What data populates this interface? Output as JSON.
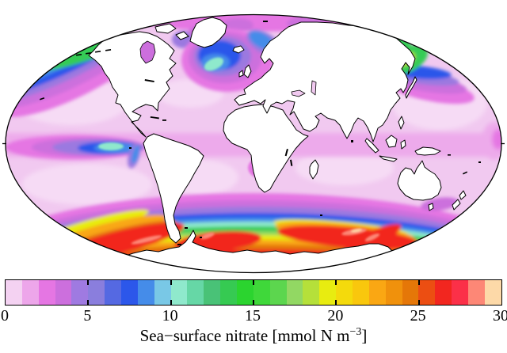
{
  "figure": {
    "kind": "global ocean map with colorbar legend",
    "background": "#ffffff"
  },
  "colorbar": {
    "label_prefix": "Sea−surface nitrate [mmol N m",
    "label_exponent": "−3",
    "label_suffix": "]",
    "ticks": [
      "0",
      "5",
      "10",
      "15",
      "20",
      "25",
      "30"
    ],
    "range": [
      0,
      30
    ],
    "n_cells": 30,
    "cell_colors": [
      "#f4d2f2",
      "#eda6ea",
      "#e576e3",
      "#cc6fdd",
      "#9f7ae1",
      "#8a7edd",
      "#5569e2",
      "#2c57ea",
      "#458ce9",
      "#79c8e6",
      "#8fe9cc",
      "#66d7a6",
      "#49c277",
      "#36ca52",
      "#2bd42f",
      "#3fd83a",
      "#5cd64e",
      "#92d863",
      "#b5e03a",
      "#e8ec10",
      "#f4da0c",
      "#f9c70d",
      "#faa713",
      "#f0910c",
      "#e57708",
      "#ec4e12",
      "#f2261f",
      "#fb3048",
      "#fd8776",
      "#fdd9a8"
    ],
    "border_color": "#000000"
  },
  "palette": {
    "pink_base": "#f1c9f0",
    "pink_light": "#f6dbf5",
    "pink_mid": "#edaaeb",
    "magenta": "#e576e3",
    "orchid": "#cc6fdd",
    "purple": "#9b79e0",
    "blue": "#2c57ea",
    "blue_light": "#458ce9",
    "sky": "#79c8e6",
    "cyan": "#8fe9cc",
    "green": "#35cc55",
    "green_yellow": "#92d863",
    "yellow_green": "#b5e03a",
    "yellow": "#e8ec10",
    "orange": "#f9a713",
    "orange_dark": "#e57708",
    "red": "#f2261f",
    "salmon": "#fd8776",
    "peach": "#fdd9a8",
    "land": "#ffffff",
    "coast": "#000000"
  },
  "map": {
    "outline": "ellipse",
    "ocean_base_value_mmol": "0–2",
    "regions": [
      {
        "name": "subtropical-gyres",
        "approx_value_mmol": "0–1"
      },
      {
        "name": "equatorial-pacific-upwelling",
        "approx_value_mmol": "4–11"
      },
      {
        "name": "northeast-pacific-subarctic",
        "approx_value_mmol": "8–15"
      },
      {
        "name": "bering-sea-northwest-pacific",
        "approx_value_mmol": "12–20"
      },
      {
        "name": "north-atlantic-subpolar",
        "approx_value_mmol": "5–12"
      },
      {
        "name": "benguela-upwelling",
        "approx_value_mmol": "5–11"
      },
      {
        "name": "arctic-margin",
        "approx_value_mmol": "2–5"
      },
      {
        "name": "southern-ocean-ring",
        "approx_value_mmol": "3–30"
      }
    ]
  }
}
